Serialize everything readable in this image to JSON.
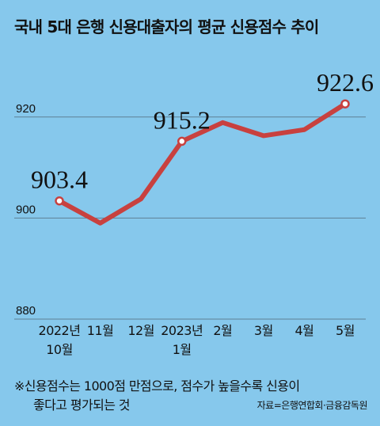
{
  "title": "국내 5대 은행 신용대출자의 평균 신용점수 추이",
  "colors": {
    "background": "#86c8ec",
    "line": "#c8413f",
    "gridline": "#5f7f94",
    "text": "#111111"
  },
  "chart_data": {
    "type": "line",
    "title": "국내 5대 은행 신용대출자의 평균 신용점수 추이",
    "xlabel": "",
    "ylabel": "",
    "categories": [
      [
        "2022년",
        "10월"
      ],
      [
        "11월"
      ],
      [
        "12월"
      ],
      [
        "2023년",
        "1월"
      ],
      [
        "2월"
      ],
      [
        "3월"
      ],
      [
        "4월"
      ],
      [
        "5월"
      ]
    ],
    "values": [
      903.4,
      899.0,
      903.8,
      915.2,
      918.9,
      916.3,
      917.5,
      922.6
    ],
    "ylim": [
      880,
      930
    ],
    "yticks": [
      880,
      900,
      920
    ],
    "grid": true,
    "labeled_points": [
      {
        "index": 0,
        "label": "903.4"
      },
      {
        "index": 3,
        "label": "915.2"
      },
      {
        "index": 7,
        "label": "922.6"
      }
    ]
  },
  "footnote": {
    "line1": "※신용점수는 1000점 만점으로, 점수가 높을수록 신용이",
    "line2": "좋다고 평가되는 것"
  },
  "source": "자료=은행연합회·금융감독원"
}
